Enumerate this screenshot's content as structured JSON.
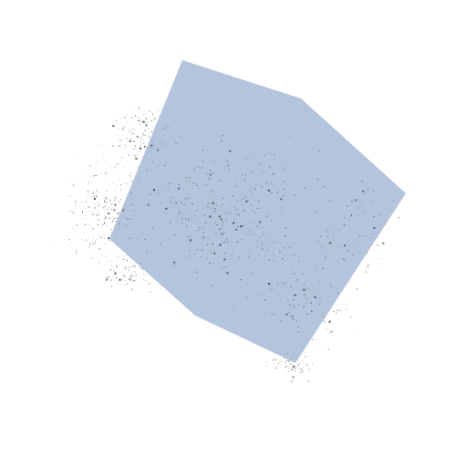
{
  "scene": {
    "description_shape": "blue-gray translucent polygon over speckled noise cloud",
    "colors": {
      "background": "#ffffff",
      "polygon_fill": "#aebfd9",
      "noise_dark": "#333333",
      "noise_light": "#9a9a9a"
    }
  }
}
